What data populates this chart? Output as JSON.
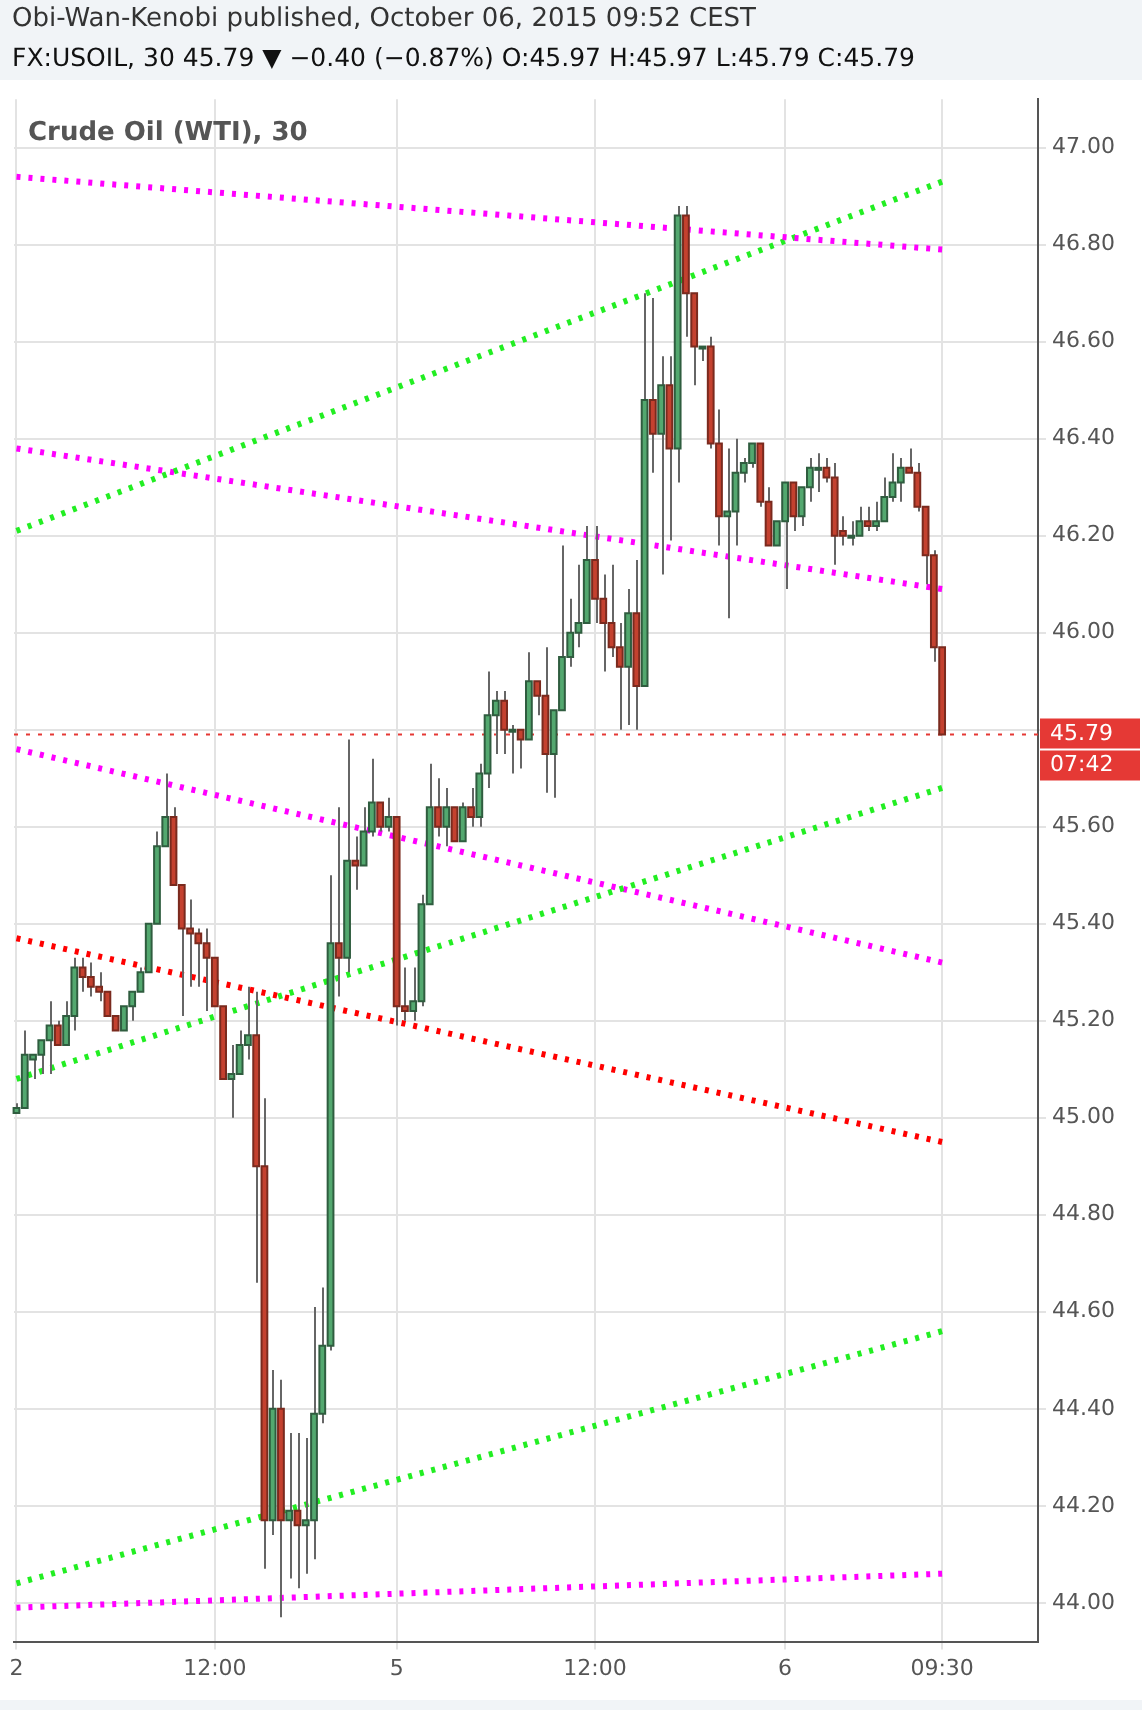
{
  "chart_data": {
    "type": "candlestick",
    "title": "Obi-Wan-Kenobi published, October 06, 2015 09:52 CEST",
    "subtitle": "FX:USOIL, 30 45.79 ▼ −0.40 (−0.87%) O:45.97 H:45.97 L:45.79 C:45.79",
    "annotations": [
      "Crude Oil (WTI), 30",
      "07:42"
    ],
    "categories": [
      "2",
      null,
      null,
      null,
      null,
      null,
      null,
      null,
      null,
      null,
      null,
      null,
      null,
      null,
      null,
      null,
      null,
      null,
      null,
      null,
      null,
      null,
      null,
      null,
      "12:00",
      null,
      null,
      null,
      null,
      null,
      null,
      null,
      null,
      null,
      null,
      null,
      null,
      null,
      null,
      null,
      null,
      null,
      null,
      null,
      null,
      null,
      "5",
      null,
      null,
      null,
      null,
      null,
      null,
      null,
      null,
      null,
      null,
      null,
      null,
      null,
      null,
      null,
      null,
      null,
      null,
      null,
      null,
      null,
      null,
      null,
      "12:00",
      null,
      null,
      null,
      null,
      null,
      null,
      null,
      null,
      null,
      null,
      null,
      null,
      null,
      null,
      null,
      null,
      null,
      null,
      null,
      null,
      null,
      null,
      "6",
      null,
      null,
      null,
      null,
      null,
      null,
      null,
      null,
      null,
      null,
      null,
      null,
      null,
      null,
      null,
      null,
      null,
      null,
      "09:30"
    ],
    "ohlc": [
      [
        45.01,
        45.03,
        45.01,
        45.02
      ],
      [
        45.02,
        45.18,
        45.02,
        45.13
      ],
      [
        45.12,
        45.13,
        45.08,
        45.13
      ],
      [
        45.13,
        45.16,
        45.09,
        45.16
      ],
      [
        45.16,
        45.24,
        45.09,
        45.19
      ],
      [
        45.19,
        45.2,
        45.15,
        45.15
      ],
      [
        45.15,
        45.24,
        45.15,
        45.21
      ],
      [
        45.21,
        45.33,
        45.18,
        45.31
      ],
      [
        45.31,
        45.33,
        45.26,
        45.29
      ],
      [
        45.29,
        45.32,
        45.25,
        45.27
      ],
      [
        45.27,
        45.3,
        45.24,
        45.26
      ],
      [
        45.26,
        45.26,
        45.21,
        45.21
      ],
      [
        45.21,
        45.21,
        45.18,
        45.18
      ],
      [
        45.18,
        45.23,
        45.18,
        45.23
      ],
      [
        45.23,
        45.26,
        45.2,
        45.26
      ],
      [
        45.26,
        45.31,
        45.26,
        45.3
      ],
      [
        45.3,
        45.4,
        45.3,
        45.4
      ],
      [
        45.4,
        45.59,
        45.4,
        45.56
      ],
      [
        45.56,
        45.71,
        45.56,
        45.62
      ],
      [
        45.62,
        45.64,
        45.48,
        45.48
      ],
      [
        45.48,
        45.48,
        45.21,
        45.39
      ],
      [
        45.39,
        45.45,
        45.27,
        45.38
      ],
      [
        45.38,
        45.39,
        45.27,
        45.36
      ],
      [
        45.36,
        45.39,
        45.22,
        45.33
      ],
      [
        45.33,
        45.33,
        45.23,
        45.23
      ],
      [
        45.23,
        45.23,
        45.08,
        45.08
      ],
      [
        45.08,
        45.15,
        45.0,
        45.09
      ],
      [
        45.09,
        45.18,
        45.09,
        45.15
      ],
      [
        45.15,
        45.27,
        45.12,
        45.17
      ],
      [
        45.17,
        45.26,
        44.66,
        44.9
      ],
      [
        44.9,
        45.04,
        44.07,
        44.17
      ],
      [
        44.17,
        44.48,
        44.14,
        44.4
      ],
      [
        44.4,
        44.46,
        43.97,
        44.17
      ],
      [
        44.17,
        44.35,
        44.05,
        44.19
      ],
      [
        44.19,
        44.35,
        44.03,
        44.16
      ],
      [
        44.16,
        44.34,
        44.06,
        44.17
      ],
      [
        44.17,
        44.61,
        44.09,
        44.39
      ],
      [
        44.39,
        44.65,
        44.37,
        44.53
      ],
      [
        44.53,
        45.5,
        44.52,
        45.36
      ],
      [
        45.36,
        45.64,
        45.25,
        45.33
      ],
      [
        45.33,
        45.78,
        45.3,
        45.53
      ],
      [
        45.53,
        45.58,
        45.47,
        45.52
      ],
      [
        45.52,
        45.64,
        45.52,
        45.59
      ],
      [
        45.59,
        45.74,
        45.58,
        45.65
      ],
      [
        45.65,
        45.65,
        45.59,
        45.6
      ],
      [
        45.6,
        45.66,
        45.59,
        45.62
      ],
      [
        45.62,
        45.62,
        45.19,
        45.23
      ],
      [
        45.23,
        45.31,
        45.2,
        45.22
      ],
      [
        45.22,
        45.31,
        45.2,
        45.24
      ],
      [
        45.24,
        45.46,
        45.23,
        45.44
      ],
      [
        45.44,
        45.73,
        45.44,
        45.64
      ],
      [
        45.64,
        45.7,
        45.58,
        45.6
      ],
      [
        45.6,
        45.68,
        45.56,
        45.64
      ],
      [
        45.64,
        45.64,
        45.57,
        45.57
      ],
      [
        45.57,
        45.65,
        45.57,
        45.64
      ],
      [
        45.64,
        45.68,
        45.6,
        45.62
      ],
      [
        45.62,
        45.73,
        45.6,
        45.71
      ],
      [
        45.71,
        45.92,
        45.68,
        45.83
      ],
      [
        45.83,
        45.88,
        45.75,
        45.86
      ],
      [
        45.86,
        45.88,
        45.75,
        45.8
      ],
      [
        45.8,
        45.81,
        45.71,
        45.8
      ],
      [
        45.8,
        45.8,
        45.72,
        45.78
      ],
      [
        45.78,
        45.96,
        45.78,
        45.9
      ],
      [
        45.9,
        45.9,
        45.83,
        45.87
      ],
      [
        45.87,
        45.97,
        45.67,
        45.75
      ],
      [
        45.75,
        45.84,
        45.66,
        45.84
      ],
      [
        45.84,
        46.18,
        45.84,
        45.95
      ],
      [
        45.95,
        46.07,
        45.93,
        46.0
      ],
      [
        46.0,
        46.14,
        45.97,
        46.02
      ],
      [
        46.02,
        46.22,
        46.02,
        46.15
      ],
      [
        46.15,
        46.22,
        46.02,
        46.07
      ],
      [
        46.07,
        46.12,
        45.92,
        46.02
      ],
      [
        46.02,
        46.14,
        45.95,
        45.97
      ],
      [
        45.97,
        46.02,
        45.8,
        45.93
      ],
      [
        45.93,
        46.09,
        45.81,
        46.04
      ],
      [
        46.04,
        46.15,
        45.8,
        45.89
      ],
      [
        45.89,
        46.7,
        45.89,
        46.48
      ],
      [
        46.48,
        46.69,
        46.33,
        46.41
      ],
      [
        46.41,
        46.57,
        46.12,
        46.51
      ],
      [
        46.51,
        46.57,
        46.19,
        46.38
      ],
      [
        46.38,
        46.88,
        46.31,
        46.86
      ],
      [
        46.86,
        46.88,
        46.61,
        46.7
      ],
      [
        46.7,
        46.7,
        46.51,
        46.59
      ],
      [
        46.59,
        46.59,
        46.56,
        46.59
      ],
      [
        46.59,
        46.61,
        46.38,
        46.39
      ],
      [
        46.39,
        46.46,
        46.18,
        46.24
      ],
      [
        46.24,
        46.38,
        46.03,
        46.25
      ],
      [
        46.25,
        46.4,
        46.18,
        46.33
      ],
      [
        46.33,
        46.36,
        46.31,
        46.35
      ],
      [
        46.35,
        46.39,
        46.34,
        46.39
      ],
      [
        46.39,
        46.39,
        46.26,
        46.27
      ],
      [
        46.27,
        46.3,
        46.18,
        46.18
      ],
      [
        46.18,
        46.23,
        46.18,
        46.23
      ],
      [
        46.23,
        46.31,
        46.09,
        46.31
      ],
      [
        46.31,
        46.31,
        46.21,
        46.24
      ],
      [
        46.24,
        46.3,
        46.22,
        46.3
      ],
      [
        46.3,
        46.36,
        46.27,
        46.34
      ],
      [
        46.34,
        46.37,
        46.29,
        46.34
      ],
      [
        46.34,
        46.36,
        46.31,
        46.32
      ],
      [
        46.32,
        46.35,
        46.14,
        46.2
      ],
      [
        46.21,
        46.24,
        46.18,
        46.2
      ],
      [
        46.2,
        46.23,
        46.18,
        46.2
      ],
      [
        46.2,
        46.26,
        46.2,
        46.23
      ],
      [
        46.23,
        46.26,
        46.21,
        46.22
      ],
      [
        46.22,
        46.27,
        46.21,
        46.23
      ],
      [
        46.23,
        46.32,
        46.23,
        46.28
      ],
      [
        46.28,
        46.37,
        46.27,
        46.31
      ],
      [
        46.31,
        46.36,
        46.27,
        46.34
      ],
      [
        46.34,
        46.38,
        46.33,
        46.33
      ],
      [
        46.33,
        46.35,
        46.25,
        46.26
      ],
      [
        46.26,
        46.26,
        46.1,
        46.16
      ],
      [
        46.16,
        46.17,
        45.94,
        45.97
      ],
      [
        45.97,
        45.97,
        45.79,
        45.79
      ]
    ],
    "series": [
      {
        "type": "line",
        "color": "#ff00ff",
        "x": [
          "2",
          "09:30"
        ],
        "values": [
          46.94,
          46.79
        ]
      },
      {
        "type": "line",
        "color": "#22ee22",
        "x": [
          "2",
          "09:30"
        ],
        "values": [
          46.21,
          46.93
        ]
      },
      {
        "type": "line",
        "color": "#ff00ff",
        "x": [
          "2",
          "09:30"
        ],
        "values": [
          46.38,
          46.09
        ]
      },
      {
        "type": "line",
        "color": "#22ee22",
        "x": [
          "2",
          "09:30"
        ],
        "values": [
          45.08,
          45.68
        ]
      },
      {
        "type": "line",
        "color": "#ff00ff",
        "x": [
          "2",
          "09:30"
        ],
        "values": [
          45.76,
          45.32
        ]
      },
      {
        "type": "line",
        "color": "#ff0000",
        "x": [
          "2",
          "09:30"
        ],
        "values": [
          45.37,
          44.95
        ]
      },
      {
        "type": "line",
        "color": "#22ee22",
        "x": [
          "2",
          "09:30"
        ],
        "values": [
          44.04,
          44.56
        ]
      },
      {
        "type": "line",
        "color": "#ff00ff",
        "x": [
          "2",
          "09:30"
        ],
        "values": [
          43.99,
          44.06
        ]
      }
    ],
    "line_style": "dotted",
    "ref_lines": [
      {
        "axis": "y",
        "value": 45.79,
        "label": "45.79",
        "color": "#e53935",
        "line_style": "dotted"
      }
    ],
    "ylim": [
      43.92,
      47.1
    ],
    "yticks": [
      {
        "value": 44,
        "label": "44.00"
      },
      {
        "value": 44.2,
        "label": "44.20"
      },
      {
        "value": 44.4,
        "label": "44.40"
      },
      {
        "value": 44.6,
        "label": "44.60"
      },
      {
        "value": 44.8,
        "label": "44.80"
      },
      {
        "value": 45,
        "label": "45.00"
      },
      {
        "value": 45.2,
        "label": "45.20"
      },
      {
        "value": 45.4,
        "label": "45.40"
      },
      {
        "value": 45.6,
        "label": "45.60"
      },
      {
        "value": 45.8,
        "label": null
      },
      {
        "value": 46,
        "label": "46.00"
      },
      {
        "value": 46.2,
        "label": "46.20"
      },
      {
        "value": 46.4,
        "label": "46.40"
      },
      {
        "value": 46.6,
        "label": "46.60"
      },
      {
        "value": 46.8,
        "label": "46.80"
      },
      {
        "value": 47,
        "label": "47.00"
      }
    ],
    "grid": true,
    "legend": false
  }
}
